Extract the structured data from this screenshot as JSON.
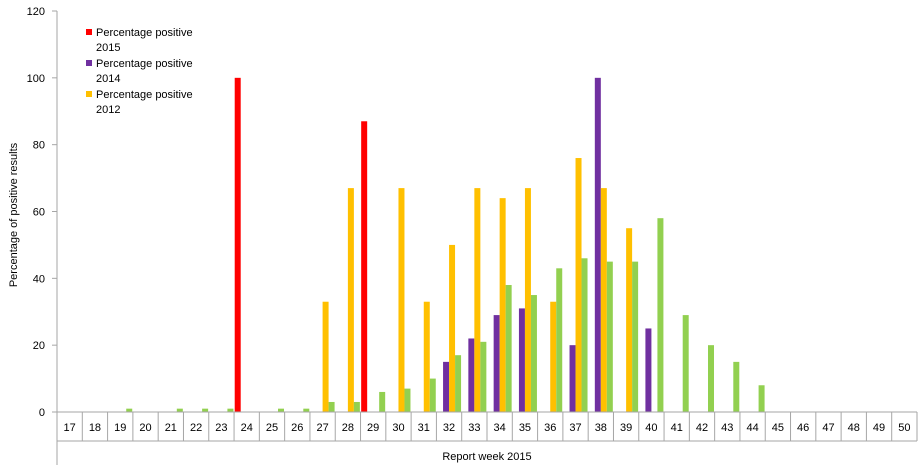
{
  "chart_data": {
    "type": "bar",
    "xlabel": "Report week 2015",
    "ylabel": "Percentage of positive results",
    "ylim": [
      0,
      120
    ],
    "yticks": [
      0,
      20,
      40,
      60,
      80,
      100,
      120
    ],
    "grid": false,
    "legend_position": "top-left",
    "categories": [
      "17",
      "18",
      "19",
      "20",
      "21",
      "22",
      "23",
      "24",
      "25",
      "26",
      "27",
      "28",
      "29",
      "30",
      "31",
      "32",
      "33",
      "34",
      "35",
      "36",
      "37",
      "38",
      "39",
      "40",
      "41",
      "42",
      "43",
      "44",
      "45",
      "46",
      "47",
      "48",
      "49",
      "50"
    ],
    "series": [
      {
        "name": "Percentage positive 2015",
        "legend_lines": [
          "Percentage positive",
          "2015"
        ],
        "color": "#ff0000",
        "values": [
          null,
          null,
          null,
          null,
          null,
          null,
          null,
          100,
          null,
          null,
          null,
          null,
          87,
          null,
          null,
          null,
          null,
          null,
          null,
          null,
          null,
          null,
          null,
          null,
          null,
          null,
          null,
          null,
          null,
          null,
          null,
          null,
          null,
          null
        ]
      },
      {
        "name": "Percentage positive 2014",
        "legend_lines": [
          "Percentage positive",
          "2014"
        ],
        "color": "#7030a0",
        "values": [
          null,
          null,
          null,
          null,
          null,
          null,
          null,
          null,
          null,
          null,
          null,
          null,
          null,
          null,
          null,
          15,
          22,
          29,
          31,
          null,
          20,
          100,
          null,
          25,
          null,
          null,
          null,
          null,
          null,
          null,
          null,
          null,
          null,
          null
        ]
      },
      {
        "name": "Percentage positive 2012",
        "legend_lines": [
          "Percentage positive",
          "2012"
        ],
        "color": "#ffc000",
        "values": [
          null,
          null,
          null,
          null,
          null,
          null,
          null,
          null,
          null,
          null,
          33,
          67,
          null,
          67,
          33,
          50,
          67,
          64,
          67,
          33,
          76,
          67,
          55,
          null,
          null,
          null,
          null,
          null,
          null,
          null,
          null,
          null,
          null,
          null
        ]
      },
      {
        "name": "",
        "legend_lines": [],
        "color": "#92d050",
        "values": [
          null,
          null,
          1,
          null,
          1,
          1,
          1,
          null,
          1,
          1,
          3,
          3,
          6,
          7,
          10,
          17,
          21,
          38,
          35,
          43,
          46,
          45,
          45,
          58,
          29,
          20,
          15,
          8,
          null,
          null,
          null,
          null,
          null,
          null
        ]
      }
    ]
  }
}
